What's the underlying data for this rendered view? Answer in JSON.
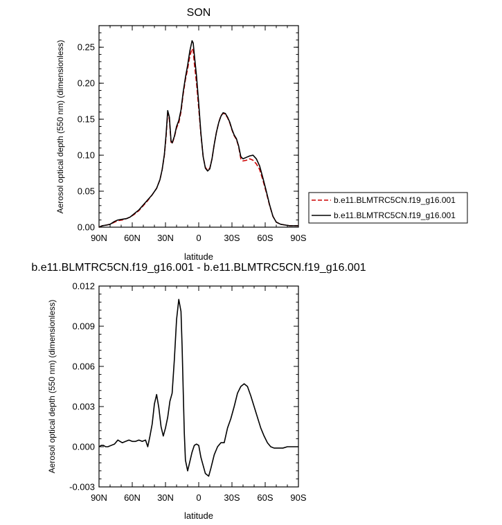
{
  "chart_data": [
    {
      "type": "line",
      "title": "SON",
      "xlabel": "latitude",
      "ylabel": "Aerosol optical depth (550 nm) (dimensionless)",
      "xlim": [
        90,
        -90
      ],
      "ylim": [
        0,
        0.28
      ],
      "x_ticks": [
        90,
        60,
        30,
        0,
        -30,
        -60,
        -90
      ],
      "x_tick_labels": [
        "90N",
        "60N",
        "30N",
        "0",
        "30S",
        "60S",
        "90S"
      ],
      "y_ticks": [
        0,
        0.05,
        0.1,
        0.15,
        0.2,
        0.25
      ],
      "y_tick_labels": [
        "0.00",
        "0.05",
        "0.10",
        "0.15",
        "0.20",
        "0.25"
      ],
      "legend_position": "right",
      "series": [
        {
          "name": "b.e11.BLMTRC5CN.f19_g16.001",
          "color": "#cc0000",
          "dash": "dashed",
          "points": [
            [
              90,
              0.0
            ],
            [
              87,
              0.002
            ],
            [
              83,
              0.003
            ],
            [
              80,
              0.004
            ],
            [
              76,
              0.007
            ],
            [
              73,
              0.009
            ],
            [
              69,
              0.01
            ],
            [
              65,
              0.012
            ],
            [
              62,
              0.014
            ],
            [
              58,
              0.018
            ],
            [
              54,
              0.023
            ],
            [
              50,
              0.03
            ],
            [
              46,
              0.037
            ],
            [
              42,
              0.045
            ],
            [
              38,
              0.054
            ],
            [
              35,
              0.066
            ],
            [
              33,
              0.08
            ],
            [
              31,
              0.1
            ],
            [
              29.5,
              0.125
            ],
            [
              28,
              0.158
            ],
            [
              26.5,
              0.15
            ],
            [
              25,
              0.118
            ],
            [
              24,
              0.116
            ],
            [
              22,
              0.125
            ],
            [
              20,
              0.138
            ],
            [
              18,
              0.145
            ],
            [
              16,
              0.16
            ],
            [
              14,
              0.185
            ],
            [
              12,
              0.205
            ],
            [
              10,
              0.22
            ],
            [
              8,
              0.238
            ],
            [
              6,
              0.248
            ],
            [
              5,
              0.245
            ],
            [
              4,
              0.228
            ],
            [
              2,
              0.2
            ],
            [
              0,
              0.165
            ],
            [
              -2,
              0.128
            ],
            [
              -4,
              0.098
            ],
            [
              -6,
              0.083
            ],
            [
              -8,
              0.079
            ],
            [
              -10,
              0.082
            ],
            [
              -12,
              0.095
            ],
            [
              -14,
              0.115
            ],
            [
              -16,
              0.132
            ],
            [
              -18,
              0.145
            ],
            [
              -20,
              0.155
            ],
            [
              -22,
              0.158
            ],
            [
              -24,
              0.157
            ],
            [
              -26,
              0.152
            ],
            [
              -28,
              0.145
            ],
            [
              -30,
              0.135
            ],
            [
              -32,
              0.127
            ],
            [
              -34,
              0.122
            ],
            [
              -36,
              0.112
            ],
            [
              -38,
              0.095
            ],
            [
              -40,
              0.092
            ],
            [
              -43,
              0.093
            ],
            [
              -46,
              0.095
            ],
            [
              -49,
              0.093
            ],
            [
              -52,
              0.088
            ],
            [
              -55,
              0.08
            ],
            [
              -58,
              0.065
            ],
            [
              -61,
              0.048
            ],
            [
              -64,
              0.03
            ],
            [
              -67,
              0.015
            ],
            [
              -70,
              0.007
            ],
            [
              -74,
              0.004
            ],
            [
              -78,
              0.003
            ],
            [
              -82,
              0.002
            ],
            [
              -86,
              0.002
            ],
            [
              -90,
              0.002
            ]
          ]
        },
        {
          "name": "b.e11.BLMTRC5CN.f19_g16.001",
          "color": "#000000",
          "dash": "solid",
          "points": [
            [
              90,
              0.0
            ],
            [
              87,
              0.002
            ],
            [
              83,
              0.003
            ],
            [
              80,
              0.004
            ],
            [
              76,
              0.008
            ],
            [
              73,
              0.01
            ],
            [
              69,
              0.011
            ],
            [
              65,
              0.012
            ],
            [
              62,
              0.014
            ],
            [
              58,
              0.019
            ],
            [
              54,
              0.024
            ],
            [
              50,
              0.031
            ],
            [
              46,
              0.038
            ],
            [
              42,
              0.045
            ],
            [
              38,
              0.054
            ],
            [
              35,
              0.066
            ],
            [
              33,
              0.08
            ],
            [
              31,
              0.101
            ],
            [
              29.5,
              0.128
            ],
            [
              28,
              0.162
            ],
            [
              26.5,
              0.153
            ],
            [
              25,
              0.12
            ],
            [
              24,
              0.117
            ],
            [
              22,
              0.126
            ],
            [
              20,
              0.14
            ],
            [
              18,
              0.148
            ],
            [
              16,
              0.163
            ],
            [
              14,
              0.188
            ],
            [
              12,
              0.208
            ],
            [
              10,
              0.225
            ],
            [
              8,
              0.245
            ],
            [
              6,
              0.259
            ],
            [
              5,
              0.256
            ],
            [
              4,
              0.24
            ],
            [
              2,
              0.21
            ],
            [
              0,
              0.172
            ],
            [
              -2,
              0.13
            ],
            [
              -4,
              0.098
            ],
            [
              -6,
              0.082
            ],
            [
              -8,
              0.078
            ],
            [
              -10,
              0.081
            ],
            [
              -12,
              0.095
            ],
            [
              -14,
              0.115
            ],
            [
              -16,
              0.132
            ],
            [
              -18,
              0.145
            ],
            [
              -20,
              0.154
            ],
            [
              -22,
              0.159
            ],
            [
              -24,
              0.158
            ],
            [
              -26,
              0.153
            ],
            [
              -28,
              0.146
            ],
            [
              -30,
              0.136
            ],
            [
              -32,
              0.128
            ],
            [
              -34,
              0.123
            ],
            [
              -36,
              0.113
            ],
            [
              -38,
              0.098
            ],
            [
              -40,
              0.095
            ],
            [
              -43,
              0.097
            ],
            [
              -46,
              0.099
            ],
            [
              -49,
              0.1
            ],
            [
              -52,
              0.095
            ],
            [
              -55,
              0.085
            ],
            [
              -58,
              0.068
            ],
            [
              -61,
              0.05
            ],
            [
              -64,
              0.031
            ],
            [
              -67,
              0.015
            ],
            [
              -70,
              0.007
            ],
            [
              -74,
              0.004
            ],
            [
              -78,
              0.003
            ],
            [
              -82,
              0.002
            ],
            [
              -86,
              0.002
            ],
            [
              -90,
              0.002
            ]
          ]
        }
      ]
    },
    {
      "type": "line",
      "title": "b.e11.BLMTRC5CN.f19_g16.001 - b.e11.BLMTRC5CN.f19_g16.001",
      "xlabel": "latitude",
      "ylabel": "Aerosol optical depth (550 nm) (dimensionless)",
      "xlim": [
        90,
        -90
      ],
      "ylim": [
        -0.003,
        0.012
      ],
      "x_ticks": [
        90,
        60,
        30,
        0,
        -30,
        -60,
        -90
      ],
      "x_tick_labels": [
        "90N",
        "60N",
        "30N",
        "0",
        "30S",
        "60S",
        "90S"
      ],
      "y_ticks": [
        -0.003,
        0,
        0.003,
        0.006,
        0.009,
        0.012
      ],
      "y_tick_labels": [
        "-0.003",
        "0.000",
        "0.003",
        "0.006",
        "0.009",
        "0.012"
      ],
      "series": [
        {
          "color": "#000000",
          "dash": "solid",
          "points": [
            [
              90,
              0.0
            ],
            [
              88,
              0.0001
            ],
            [
              86,
              0.0001
            ],
            [
              84,
              0.0
            ],
            [
              82,
              0.0
            ],
            [
              79,
              0.0001
            ],
            [
              76,
              0.0002
            ],
            [
              73,
              0.0005
            ],
            [
              71,
              0.0004
            ],
            [
              69,
              0.0003
            ],
            [
              66,
              0.0004
            ],
            [
              63,
              0.0005
            ],
            [
              60,
              0.0004
            ],
            [
              57,
              0.0004
            ],
            [
              54,
              0.0005
            ],
            [
              51,
              0.0004
            ],
            [
              48,
              0.0005
            ],
            [
              46,
              0.0
            ],
            [
              44,
              0.0008
            ],
            [
              42,
              0.0017
            ],
            [
              40,
              0.0032
            ],
            [
              38,
              0.0039
            ],
            [
              36,
              0.0029
            ],
            [
              34,
              0.0015
            ],
            [
              32,
              0.0008
            ],
            [
              30,
              0.0014
            ],
            [
              28,
              0.0022
            ],
            [
              26,
              0.0034
            ],
            [
              24,
              0.004
            ],
            [
              22,
              0.0065
            ],
            [
              20,
              0.0095
            ],
            [
              18,
              0.011
            ],
            [
              16,
              0.0101
            ],
            [
              15,
              0.0075
            ],
            [
              14,
              0.0042
            ],
            [
              13,
              0.001
            ],
            [
              12,
              -0.001
            ],
            [
              10,
              -0.0018
            ],
            [
              8,
              -0.0011
            ],
            [
              6,
              -0.0004
            ],
            [
              4,
              0.0001
            ],
            [
              2,
              0.0002
            ],
            [
              0,
              0.0001
            ],
            [
              -2,
              -0.0008
            ],
            [
              -4,
              -0.0014
            ],
            [
              -6,
              -0.002
            ],
            [
              -9,
              -0.0022
            ],
            [
              -11,
              -0.0016
            ],
            [
              -14,
              -0.0006
            ],
            [
              -17,
              0.0
            ],
            [
              -20,
              0.0003
            ],
            [
              -23,
              0.0003
            ],
            [
              -26,
              0.0014
            ],
            [
              -29,
              0.0021
            ],
            [
              -32,
              0.003
            ],
            [
              -35,
              0.004
            ],
            [
              -38,
              0.0045
            ],
            [
              -41,
              0.0047
            ],
            [
              -44,
              0.0045
            ],
            [
              -47,
              0.0038
            ],
            [
              -50,
              0.003
            ],
            [
              -53,
              0.0022
            ],
            [
              -56,
              0.0014
            ],
            [
              -59,
              0.0008
            ],
            [
              -62,
              0.0003
            ],
            [
              -65,
              0.0
            ],
            [
              -68,
              -0.0001
            ],
            [
              -72,
              -0.0001
            ],
            [
              -76,
              -0.0001
            ],
            [
              -80,
              0.0
            ],
            [
              -84,
              0.0
            ],
            [
              -88,
              0.0
            ],
            [
              -90,
              0.0
            ]
          ]
        }
      ]
    }
  ]
}
